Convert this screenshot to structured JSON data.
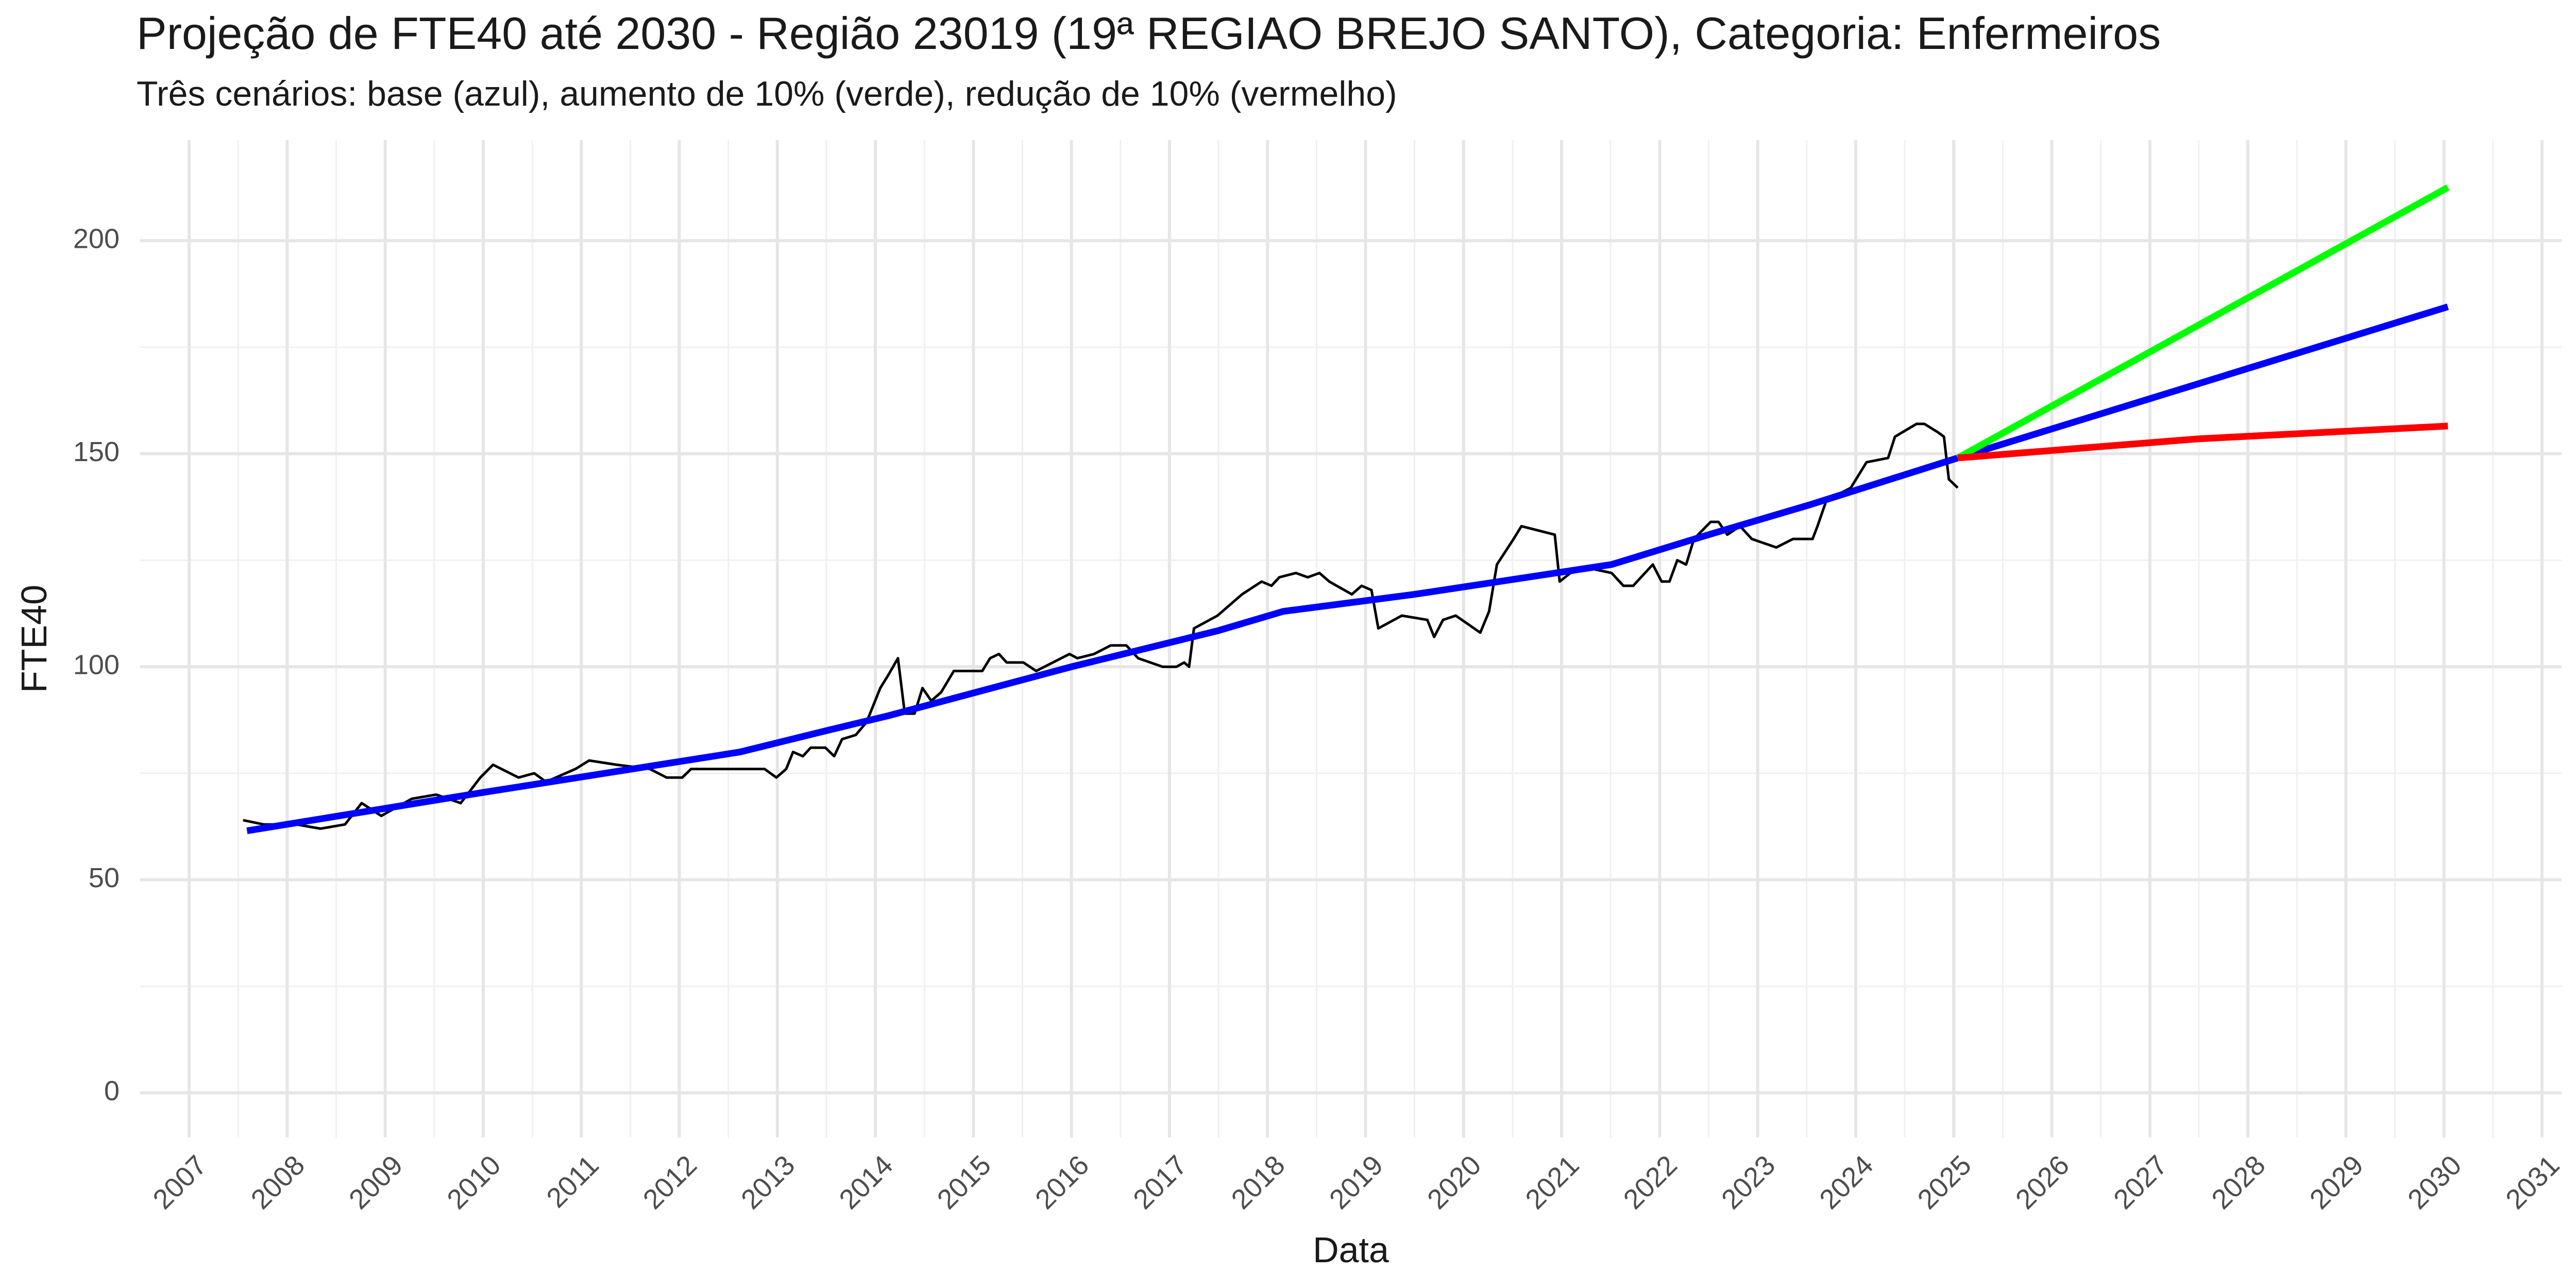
{
  "chart_data": {
    "type": "line",
    "title": "Projeção de FTE40 até 2030 - Região 23019 (19ª REGIAO BREJO SANTO), Categoria: Enfermeiros",
    "subtitle": "Três cenários: base (azul), aumento de 10% (verde), redução de 10% (vermelho)",
    "x_label": "Data",
    "y_label": "FTE40",
    "xlim": [
      2006.5,
      2031.2
    ],
    "ylim": [
      -10.5,
      223.6
    ],
    "xticks": [
      2007,
      2008,
      2009,
      2010,
      2011,
      2012,
      2013,
      2014,
      2015,
      2016,
      2017,
      2018,
      2019,
      2020,
      2021,
      2022,
      2023,
      2024,
      2025,
      2026,
      2027,
      2028,
      2029,
      2030,
      2031
    ],
    "yticks": [
      0,
      50,
      100,
      150,
      200
    ],
    "grid": true,
    "series": [
      {
        "color": "#000000",
        "x": [
          2007.55,
          2007.76,
          2008.09,
          2008.34,
          2008.59,
          2008.76,
          2008.96,
          2009.27,
          2009.52,
          2009.77,
          2009.97,
          2010.1,
          2010.36,
          2010.52,
          2010.64,
          2010.94,
          2011.08,
          2011.36,
          2011.7,
          2011.87,
          2012.03,
          2012.12,
          2012.87,
          2012.99,
          2013.09,
          2013.16,
          2013.26,
          2013.34,
          2013.49,
          2013.58,
          2013.66,
          2013.8,
          2013.91,
          2014.05,
          2014.13,
          2014.23,
          2014.3,
          2014.4,
          2014.48,
          2014.57,
          2014.67,
          2014.8,
          2015.09,
          2015.17,
          2015.26,
          2015.34,
          2015.51,
          2015.64,
          2015.98,
          2016.06,
          2016.23,
          2016.4,
          2016.56,
          2016.68,
          2016.93,
          2017.07,
          2017.15,
          2017.2,
          2017.25,
          2017.49,
          2017.74,
          2017.94,
          2018.04,
          2018.12,
          2018.29,
          2018.41,
          2018.53,
          2018.63,
          2018.86,
          2018.96,
          2019.06,
          2019.13,
          2019.37,
          2019.63,
          2019.7,
          2019.79,
          2019.92,
          2020.17,
          2020.26,
          2020.34,
          2020.51,
          2020.59,
          2020.93,
          2020.98,
          2021.09,
          2021.31,
          2021.51,
          2021.63,
          2021.73,
          2021.93,
          2022.02,
          2022.1,
          2022.18,
          2022.27,
          2022.35,
          2022.52,
          2022.6,
          2022.69,
          2022.82,
          2022.94,
          2023.19,
          2023.36,
          2023.56,
          2023.61,
          2023.7,
          2023.95,
          2024.11,
          2024.33,
          2024.4,
          2024.62,
          2024.7,
          2024.84,
          2024.9,
          2024.95,
          2025.04
        ],
        "values": [
          64,
          63,
          63,
          62,
          63,
          68,
          65,
          69,
          70,
          68,
          74,
          77,
          74,
          75,
          73,
          76,
          78,
          77,
          76,
          74,
          74,
          76,
          76,
          74,
          76,
          80,
          79,
          81,
          81,
          79,
          83,
          84,
          87,
          95,
          98,
          102,
          89,
          89,
          95,
          92,
          94,
          99,
          99,
          102,
          103,
          101,
          101,
          99,
          103,
          102,
          103,
          105,
          105,
          102,
          100,
          100,
          101,
          100,
          109,
          112,
          117,
          120,
          119,
          121,
          122,
          121,
          122,
          120,
          117,
          119,
          118,
          109,
          112,
          111,
          107,
          111,
          112,
          108,
          113,
          124,
          130,
          133,
          131,
          120,
          122,
          123,
          122,
          119,
          119,
          124,
          120,
          120,
          125,
          124,
          130,
          134,
          134,
          131,
          133,
          130,
          128,
          130,
          130,
          133,
          139,
          142,
          148,
          149,
          154,
          157,
          157,
          155,
          154,
          144,
          142
        ]
      },
      {
        "color": "#0000ff",
        "x": [
          2007.59,
          2010.0,
          2012.62,
          2013.5,
          2014.13,
          2016.0,
          2017.5,
          2018.16,
          2019.5,
          2021.51,
          2022.5,
          2023.53,
          2025.04,
          2030.04
        ],
        "values": [
          61.5,
          70.5,
          80,
          85,
          88.5,
          100,
          108.5,
          113,
          117,
          124,
          131,
          138,
          149,
          184.5
        ]
      },
      {
        "color": "#00ff00",
        "x": [
          2025.04,
          2030.04
        ],
        "values": [
          149,
          212.5
        ]
      },
      {
        "color": "#ff0000",
        "x": [
          2025.04,
          2027.5,
          2030.04
        ],
        "values": [
          149,
          153.5,
          156.5
        ]
      }
    ]
  }
}
